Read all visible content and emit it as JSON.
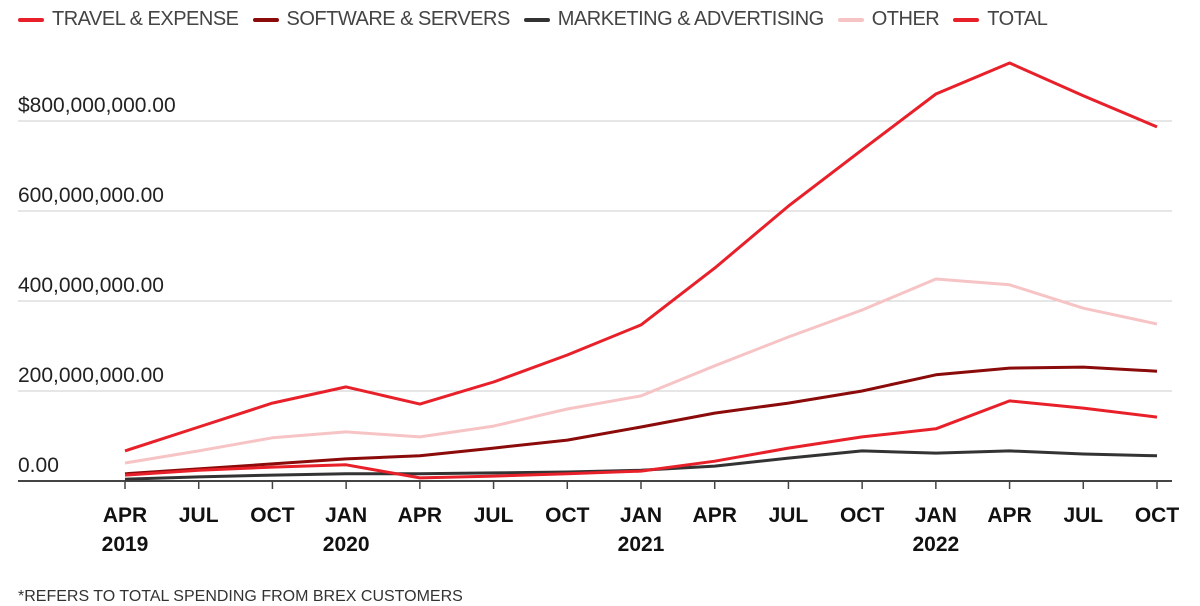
{
  "chart_data": {
    "type": "line",
    "title": "",
    "xlabel": "",
    "ylabel": "",
    "ylim": [
      0,
      800000000
    ],
    "grid": true,
    "legend_placement": "top",
    "y_ticks": [
      {
        "value": 0,
        "label": "0.00"
      },
      {
        "value": 200000000,
        "label": "200,000,000.00"
      },
      {
        "value": 400000000,
        "label": "400,000,000.00"
      },
      {
        "value": 600000000,
        "label": "600,000,000.00"
      },
      {
        "value": 800000000,
        "label": "$800,000,000.00"
      }
    ],
    "x_labels": [
      {
        "month": "APR",
        "year": "2019"
      },
      {
        "month": "JUL",
        "year": ""
      },
      {
        "month": "OCT",
        "year": ""
      },
      {
        "month": "JAN",
        "year": "2020"
      },
      {
        "month": "APR",
        "year": ""
      },
      {
        "month": "JUL",
        "year": ""
      },
      {
        "month": "OCT",
        "year": ""
      },
      {
        "month": "JAN",
        "year": "2021"
      },
      {
        "month": "APR",
        "year": ""
      },
      {
        "month": "JUL",
        "year": ""
      },
      {
        "month": "OCT",
        "year": ""
      },
      {
        "month": "JAN",
        "year": "2022"
      },
      {
        "month": "APR",
        "year": ""
      },
      {
        "month": "JUL",
        "year": ""
      },
      {
        "month": "OCT",
        "year": ""
      }
    ],
    "series": [
      {
        "name": "TRAVEL & EXPENSE",
        "color": "#e8202a",
        "values": [
          13000000,
          24000000,
          31000000,
          36000000,
          7000000,
          11000000,
          16000000,
          22000000,
          44000000,
          73000000,
          98000000,
          116000000,
          178000000,
          162000000,
          142000000
        ]
      },
      {
        "name": "SOFTWARE & SERVERS",
        "color": "#8b0a0a",
        "values": [
          16000000,
          27000000,
          38000000,
          49000000,
          56000000,
          73000000,
          91000000,
          120000000,
          151000000,
          173000000,
          200000000,
          236000000,
          251000000,
          253000000,
          244000000
        ]
      },
      {
        "name": "MARKETING & ADVERTISING",
        "color": "#333333",
        "values": [
          4000000,
          9000000,
          13000000,
          16000000,
          16000000,
          18000000,
          20000000,
          24000000,
          33000000,
          51000000,
          67000000,
          62000000,
          67000000,
          60000000,
          56000000
        ]
      },
      {
        "name": "OTHER",
        "color": "#f7c4c6",
        "values": [
          40000000,
          67000000,
          96000000,
          109000000,
          98000000,
          122000000,
          160000000,
          189000000,
          256000000,
          320000000,
          380000000,
          449000000,
          436000000,
          384000000,
          349000000
        ]
      },
      {
        "name": "TOTAL",
        "color": "#e8202a",
        "values": [
          67000000,
          120000000,
          173000000,
          209000000,
          171000000,
          220000000,
          280000000,
          347000000,
          473000000,
          611000000,
          736000000,
          860000000,
          929000000,
          856000000,
          787000000
        ]
      }
    ]
  },
  "footnote": "*REFERS TO TOTAL SPENDING FROM BREX CUSTOMERS"
}
